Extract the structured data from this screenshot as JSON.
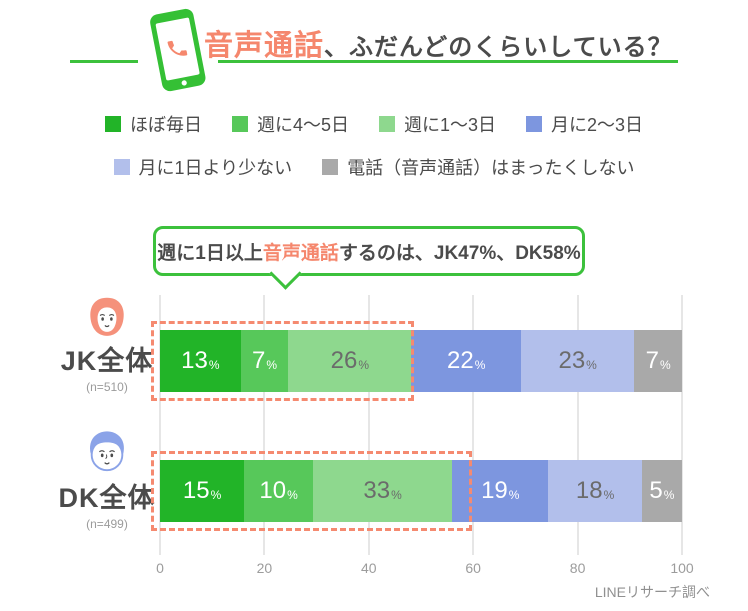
{
  "header": {
    "title_highlight": "音声通話",
    "title_rest": "、ふだんどのくらいしている？"
  },
  "callout": {
    "pre": "週に1日以上",
    "highlight": "音声通話",
    "post": "するのは、JK47%、DK58%"
  },
  "chart_data": {
    "type": "bar",
    "orientation": "horizontal_stacked",
    "unit": "%",
    "categories": [
      "JK全体",
      "DK全体"
    ],
    "sample_sizes": [
      "(n=510)",
      "(n=499)"
    ],
    "series": [
      {
        "name": "ほぼ毎日",
        "color": "#22b428",
        "text_color": "#ffffff",
        "values": [
          13,
          15
        ]
      },
      {
        "name": "週に4〜5日",
        "color": "#57c85a",
        "text_color": "#ffffff",
        "values": [
          7,
          10
        ]
      },
      {
        "name": "週に1〜3日",
        "color": "#8ed88e",
        "text_color": "#6b6b6b",
        "values": [
          26,
          33
        ]
      },
      {
        "name": "月に2〜3日",
        "color": "#7d96df",
        "text_color": "#ffffff",
        "values": [
          22,
          19
        ]
      },
      {
        "name": "月に1日より少ない",
        "color": "#b2bfeb",
        "text_color": "#6b6b6b",
        "values": [
          23,
          18
        ]
      },
      {
        "name": "電話（音声通話）はまったくしない",
        "color": "#a9a9a9",
        "text_color": "#ffffff",
        "values": [
          7,
          5
        ]
      }
    ],
    "legend_row_split": 4,
    "xticks": [
      0,
      20,
      40,
      60,
      80,
      100
    ],
    "xlim": [
      0,
      100
    ],
    "grid": true,
    "highlight": {
      "first_n_series": 3,
      "jk_label_pct": 47,
      "dk_label_pct": 58,
      "border_color": "#f58a70"
    }
  },
  "footer": {
    "source": "LINEリサーチ調べ"
  },
  "colors": {
    "brand_green": "#3cc13c",
    "accent_coral": "#f5876d",
    "text_dark": "#4b4b4b",
    "jk_avatar": "#f5917b",
    "dk_avatar": "#8ba3e8"
  }
}
